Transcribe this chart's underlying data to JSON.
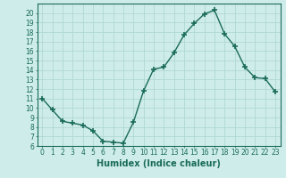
{
  "x": [
    0,
    1,
    2,
    3,
    4,
    5,
    6,
    7,
    8,
    9,
    10,
    11,
    12,
    13,
    14,
    15,
    16,
    17,
    18,
    19,
    20,
    21,
    22,
    23
  ],
  "y": [
    11.0,
    9.8,
    8.6,
    8.4,
    8.2,
    7.6,
    6.5,
    6.4,
    6.3,
    8.5,
    11.8,
    14.1,
    14.3,
    15.8,
    17.7,
    18.9,
    19.9,
    20.3,
    17.8,
    16.5,
    14.3,
    13.2,
    13.1,
    11.7
  ],
  "xlabel": "Humidex (Indice chaleur)",
  "ylim": [
    6,
    21
  ],
  "xlim": [
    -0.5,
    23.5
  ],
  "yticks": [
    6,
    7,
    8,
    9,
    10,
    11,
    12,
    13,
    14,
    15,
    16,
    17,
    18,
    19,
    20
  ],
  "xticks": [
    0,
    1,
    2,
    3,
    4,
    5,
    6,
    7,
    8,
    9,
    10,
    11,
    12,
    13,
    14,
    15,
    16,
    17,
    18,
    19,
    20,
    21,
    22,
    23
  ],
  "line_color": "#1a6b5a",
  "marker": "+",
  "marker_size": 4,
  "marker_lw": 1.2,
  "bg_color": "#ceecea",
  "grid_color": "#b0d8d4",
  "tick_label_fontsize": 5.5,
  "xlabel_fontsize": 7.0,
  "linewidth": 1.0
}
